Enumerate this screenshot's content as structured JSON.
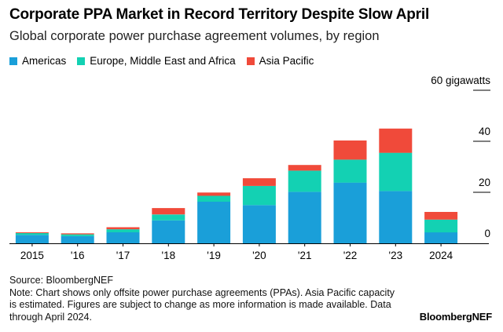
{
  "title": "Corporate PPA Market in Record Territory Despite Slow April",
  "subtitle": "Global corporate power purchase agreement volumes, by region",
  "source": "Source: BloombergNEF",
  "note": "Note: Chart shows only offsite power purchase agreements (PPAs). Asia Pacific capacity is estimated. Figures are subject to change as more information is made available. Data through April 2024.",
  "brand": "BloombergNEF",
  "chart_data": {
    "type": "bar",
    "stacked": true,
    "categories": [
      "2015",
      "'16",
      "'17",
      "'18",
      "'19",
      "'20",
      "'21",
      "'22",
      "'23",
      "2024"
    ],
    "series": [
      {
        "name": "Americas",
        "color": "#1a9fd9",
        "values": [
          3.3,
          2.8,
          4.3,
          9.0,
          16.3,
          15.0,
          20.2,
          23.8,
          20.5,
          4.3
        ]
      },
      {
        "name": "Europe, Middle East and Africa",
        "color": "#13d1b3",
        "values": [
          0.7,
          0.7,
          1.2,
          2.3,
          2.3,
          7.5,
          8.3,
          9.0,
          15.0,
          5.0
        ]
      },
      {
        "name": "Asia Pacific",
        "color": "#f04a3a",
        "values": [
          0.3,
          0.4,
          0.8,
          2.5,
          1.3,
          3.0,
          2.2,
          7.5,
          9.5,
          3.0
        ]
      }
    ],
    "y_ticks": [
      "0",
      "20",
      "40",
      "60 gigawatts"
    ],
    "y_tick_values": [
      0,
      20,
      40,
      60
    ],
    "ylim": [
      0,
      60
    ],
    "y_axis_side": "right",
    "legend_position": "top-left",
    "grid": false
  }
}
